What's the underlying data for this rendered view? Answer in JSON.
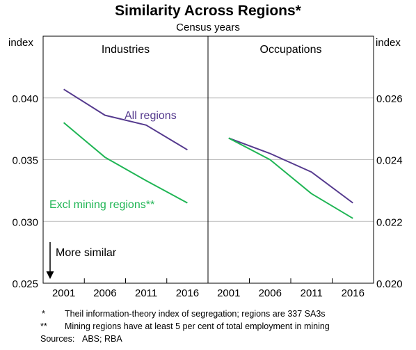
{
  "title": "Similarity Across Regions*",
  "subtitle": "Census years",
  "left_axis": {
    "unit": "index",
    "ticks": [
      "0.040",
      "0.035",
      "0.030",
      "0.025"
    ],
    "ylim": [
      0.025,
      0.045
    ]
  },
  "right_axis": {
    "unit": "index",
    "ticks": [
      "0.026",
      "0.024",
      "0.022",
      "0.020"
    ],
    "ylim": [
      0.02,
      0.028
    ]
  },
  "annotation": "More similar",
  "footnotes": [
    {
      "mark": "*",
      "text": "Theil information-theory index of segregation; regions are 337 SA3s"
    },
    {
      "mark": "**",
      "text": "Mining regions have at least 5 per cent of total employment in mining"
    },
    {
      "mark": "Sources:",
      "text": "ABS; RBA"
    }
  ],
  "colors": {
    "all_regions": "#553a8e",
    "excl_mining": "#1fb554",
    "grid": "#b8b8b8"
  },
  "chart_data": [
    {
      "type": "line",
      "title": "Industries",
      "x": [
        "2001",
        "2006",
        "2011",
        "2016"
      ],
      "ylim": [
        0.025,
        0.045
      ],
      "series": [
        {
          "name": "All regions",
          "values": [
            0.0407,
            0.0386,
            0.0378,
            0.0358
          ]
        },
        {
          "name": "Excl mining regions**",
          "values": [
            0.038,
            0.0352,
            0.0333,
            0.0315
          ]
        }
      ]
    },
    {
      "type": "line",
      "title": "Occupations",
      "x": [
        "2001",
        "2006",
        "2011",
        "2016"
      ],
      "ylim": [
        0.02,
        0.028
      ],
      "series": [
        {
          "name": "",
          "values": [
            0.0247,
            0.0242,
            0.0236,
            0.0226
          ]
        },
        {
          "name": "",
          "values": [
            0.0247,
            0.024,
            0.0229,
            0.0221
          ]
        }
      ]
    }
  ]
}
